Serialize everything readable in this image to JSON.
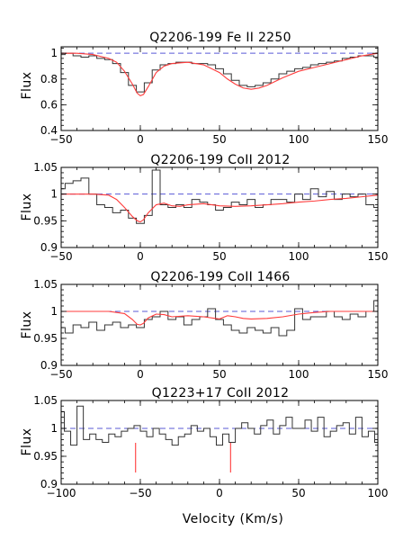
{
  "colors": {
    "data": "#333333",
    "model": "#ff3b3b",
    "continuum": "#5a5ad6",
    "marker": "#ff3b3b"
  },
  "chart_data": [
    {
      "type": "line",
      "title": "Q2206-199 Fe II 2250",
      "xlabel": "",
      "ylabel": "Flux",
      "xlim": [
        -50,
        150
      ],
      "ylim": [
        0.4,
        1.05
      ],
      "xticks": [
        -50,
        0,
        50,
        100,
        150
      ],
      "xtick_labels": [
        "−50",
        "0",
        "50",
        "100",
        "150"
      ],
      "yticks": [
        0.4,
        0.6,
        0.8,
        1.0
      ],
      "ytick_labels": [
        "0.4",
        "0.6",
        "0.8",
        "1"
      ],
      "continuum": 1.0,
      "grid": false,
      "series": [
        {
          "role": "data",
          "style": "step",
          "x": [
            -50,
            -45,
            -40,
            -35,
            -30,
            -25,
            -20,
            -15,
            -10,
            -5,
            0,
            5,
            10,
            15,
            20,
            25,
            30,
            35,
            40,
            45,
            50,
            55,
            60,
            65,
            70,
            75,
            80,
            85,
            90,
            95,
            100,
            105,
            110,
            115,
            120,
            125,
            130,
            135,
            140,
            145,
            150
          ],
          "y": [
            0.99,
            1.0,
            0.98,
            0.97,
            0.98,
            0.96,
            0.95,
            0.92,
            0.85,
            0.75,
            0.7,
            0.77,
            0.87,
            0.91,
            0.92,
            0.93,
            0.93,
            0.92,
            0.92,
            0.91,
            0.88,
            0.84,
            0.79,
            0.75,
            0.74,
            0.75,
            0.77,
            0.8,
            0.84,
            0.86,
            0.88,
            0.89,
            0.91,
            0.92,
            0.93,
            0.94,
            0.96,
            0.97,
            0.98,
            0.98,
            0.97
          ]
        },
        {
          "role": "model",
          "style": "line",
          "x": [
            -50,
            -40,
            -30,
            -20,
            -15,
            -10,
            -5,
            -2,
            0,
            2,
            5,
            10,
            15,
            20,
            30,
            40,
            50,
            55,
            60,
            65,
            70,
            75,
            80,
            90,
            100,
            110,
            120,
            130,
            140,
            150
          ],
          "y": [
            1.0,
            1.0,
            0.99,
            0.96,
            0.93,
            0.86,
            0.76,
            0.69,
            0.67,
            0.68,
            0.74,
            0.85,
            0.9,
            0.92,
            0.93,
            0.91,
            0.85,
            0.8,
            0.76,
            0.73,
            0.72,
            0.73,
            0.75,
            0.81,
            0.86,
            0.89,
            0.92,
            0.95,
            0.98,
            1.0
          ]
        }
      ],
      "markers_x": []
    },
    {
      "type": "line",
      "title": "Q2206-199 CoII 2012",
      "xlabel": "",
      "ylabel": "Flux",
      "xlim": [
        -50,
        150
      ],
      "ylim": [
        0.9,
        1.05
      ],
      "xticks": [
        -50,
        0,
        50,
        100,
        150
      ],
      "xtick_labels": [
        "−50",
        "0",
        "50",
        "100",
        "150"
      ],
      "yticks": [
        0.9,
        0.95,
        1.0,
        1.05
      ],
      "ytick_labels": [
        "0.9",
        "0.95",
        "1",
        "1.05"
      ],
      "continuum": 1.0,
      "grid": false,
      "series": [
        {
          "role": "data",
          "style": "step",
          "x": [
            -50,
            -45,
            -40,
            -35,
            -30,
            -25,
            -20,
            -15,
            -10,
            -5,
            0,
            5,
            10,
            15,
            20,
            25,
            30,
            35,
            40,
            45,
            50,
            55,
            60,
            65,
            70,
            75,
            80,
            85,
            90,
            95,
            100,
            105,
            110,
            115,
            120,
            125,
            130,
            135,
            140,
            145,
            150
          ],
          "y": [
            1.01,
            1.02,
            1.025,
            1.03,
            1.0,
            0.98,
            0.975,
            0.965,
            0.97,
            0.955,
            0.945,
            0.96,
            1.045,
            0.98,
            0.975,
            0.98,
            0.975,
            0.99,
            0.985,
            0.98,
            0.97,
            0.975,
            0.985,
            0.98,
            0.99,
            0.975,
            0.98,
            0.99,
            0.99,
            0.985,
            1.0,
            0.99,
            1.01,
            0.995,
            1.005,
            0.99,
            1.0,
            0.995,
            1.0,
            0.98,
            0.975
          ]
        },
        {
          "role": "model",
          "style": "line",
          "x": [
            -50,
            -30,
            -20,
            -15,
            -10,
            -5,
            -2,
            0,
            2,
            5,
            10,
            15,
            20,
            25,
            30,
            40,
            50,
            60,
            70,
            80,
            90,
            100,
            110,
            120,
            130,
            140,
            150
          ],
          "y": [
            1.0,
            1.0,
            0.998,
            0.99,
            0.975,
            0.958,
            0.95,
            0.948,
            0.952,
            0.965,
            0.98,
            0.983,
            0.978,
            0.977,
            0.98,
            0.982,
            0.978,
            0.977,
            0.978,
            0.98,
            0.982,
            0.985,
            0.987,
            0.99,
            0.992,
            0.995,
            0.998
          ]
        }
      ],
      "markers_x": []
    },
    {
      "type": "line",
      "title": "Q2206-199 CoII 1466",
      "xlabel": "",
      "ylabel": "Flux",
      "xlim": [
        -50,
        150
      ],
      "ylim": [
        0.9,
        1.05
      ],
      "xticks": [
        -50,
        0,
        50,
        100,
        150
      ],
      "xtick_labels": [
        "−50",
        "0",
        "50",
        "100",
        "150"
      ],
      "yticks": [
        0.9,
        0.95,
        1.0,
        1.05
      ],
      "ytick_labels": [
        "0.9",
        "0.95",
        "1",
        "1.05"
      ],
      "continuum": 1.0,
      "grid": false,
      "series": [
        {
          "role": "data",
          "style": "step",
          "x": [
            -50,
            -45,
            -40,
            -35,
            -30,
            -25,
            -20,
            -15,
            -10,
            -5,
            0,
            5,
            10,
            15,
            20,
            25,
            30,
            35,
            40,
            45,
            50,
            55,
            60,
            65,
            70,
            75,
            80,
            85,
            90,
            95,
            100,
            105,
            110,
            115,
            120,
            125,
            130,
            135,
            140,
            145,
            150
          ],
          "y": [
            0.97,
            0.96,
            0.975,
            0.97,
            0.98,
            0.965,
            0.975,
            0.98,
            0.97,
            0.975,
            0.97,
            0.985,
            0.99,
            1.0,
            0.985,
            0.99,
            0.975,
            0.985,
            0.99,
            1.005,
            0.985,
            0.975,
            0.965,
            0.96,
            0.97,
            0.965,
            0.96,
            0.97,
            0.955,
            0.965,
            1.005,
            0.985,
            0.99,
            0.99,
            1.0,
            0.99,
            0.985,
            0.995,
            0.99,
            1.0,
            1.02
          ]
        },
        {
          "role": "model",
          "style": "line",
          "x": [
            -50,
            -20,
            -10,
            -5,
            -2,
            0,
            2,
            5,
            10,
            15,
            20,
            30,
            40,
            50,
            55,
            60,
            65,
            70,
            80,
            90,
            100,
            110,
            120,
            130,
            140,
            150
          ],
          "y": [
            1.0,
            1.0,
            0.996,
            0.985,
            0.976,
            0.975,
            0.978,
            0.988,
            0.995,
            0.994,
            0.99,
            0.992,
            0.99,
            0.986,
            0.992,
            0.99,
            0.987,
            0.986,
            0.987,
            0.99,
            0.995,
            0.998,
            1.0,
            1.0,
            1.0,
            1.0
          ]
        }
      ],
      "markers_x": []
    },
    {
      "type": "line",
      "title": "Q1223+17 CoII 2012",
      "xlabel": "Velocity (Km/s)",
      "ylabel": "Flux",
      "xlim": [
        -100,
        100
      ],
      "ylim": [
        0.9,
        1.05
      ],
      "xticks": [
        -100,
        -50,
        0,
        50,
        100
      ],
      "xtick_labels": [
        "−100",
        "−50",
        "0",
        "50",
        "100"
      ],
      "yticks": [
        0.9,
        0.95,
        1.0,
        1.05
      ],
      "ytick_labels": [
        "0.9",
        "0.95",
        "1",
        "1.05"
      ],
      "continuum": 1.0,
      "grid": false,
      "series": [
        {
          "role": "data",
          "style": "step",
          "x": [
            -100,
            -96,
            -92,
            -88,
            -84,
            -80,
            -76,
            -72,
            -68,
            -64,
            -60,
            -56,
            -52,
            -48,
            -44,
            -40,
            -36,
            -32,
            -28,
            -24,
            -20,
            -16,
            -12,
            -8,
            -4,
            0,
            4,
            8,
            12,
            16,
            20,
            24,
            28,
            32,
            36,
            40,
            44,
            48,
            52,
            56,
            60,
            64,
            68,
            72,
            76,
            80,
            84,
            88,
            92,
            96,
            100
          ],
          "y": [
            1.03,
            0.995,
            0.97,
            1.04,
            0.98,
            0.99,
            0.98,
            0.975,
            0.99,
            0.985,
            0.995,
            1.0,
            1.005,
            0.995,
            0.985,
            1.0,
            0.99,
            0.98,
            0.97,
            0.985,
            0.99,
            1.005,
            0.995,
            1.0,
            0.985,
            0.97,
            0.99,
            0.975,
            1.0,
            1.01,
            1.0,
            0.99,
            1.005,
            1.015,
            0.99,
            1.005,
            1.02,
            1.0,
            1.0,
            1.015,
            0.995,
            1.02,
            0.985,
            0.995,
            1.005,
            1.01,
            0.99,
            1.02,
            0.985,
            0.995,
            0.975
          ]
        }
      ],
      "markers_x": [
        -53,
        7
      ]
    }
  ]
}
